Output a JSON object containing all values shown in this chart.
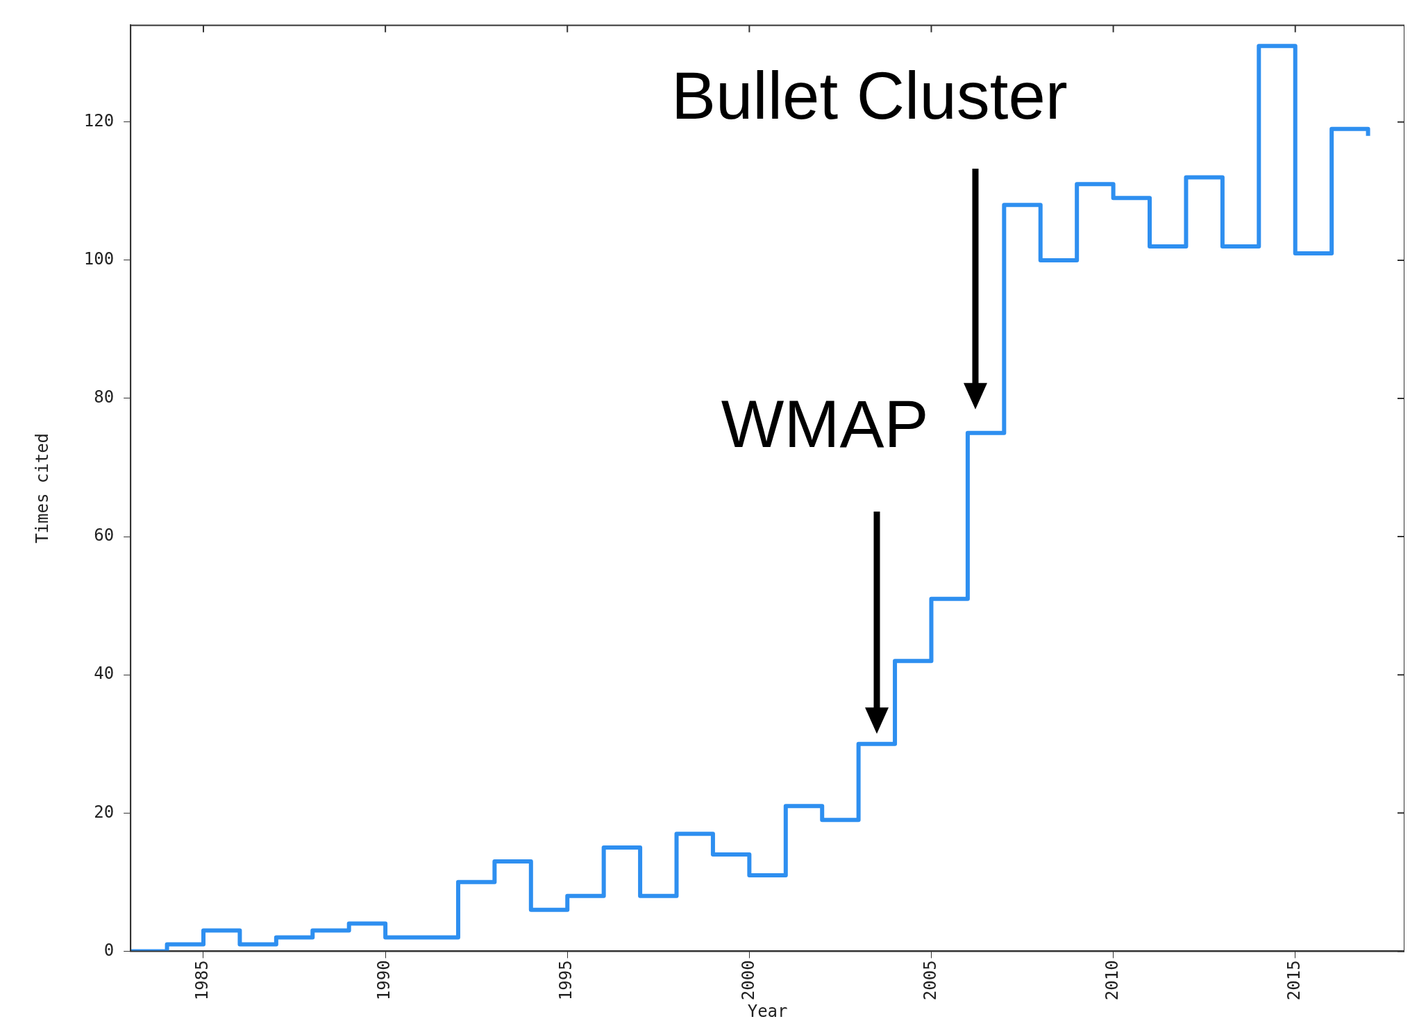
{
  "chart_data": {
    "type": "step",
    "xlabel": "Year",
    "ylabel": "Times cited",
    "x": [
      1983,
      1984,
      1985,
      1986,
      1987,
      1988,
      1989,
      1990,
      1991,
      1992,
      1993,
      1994,
      1995,
      1996,
      1997,
      1998,
      1999,
      2000,
      2001,
      2002,
      2003,
      2004,
      2005,
      2006,
      2007,
      2008,
      2009,
      2010,
      2011,
      2012,
      2013,
      2014,
      2015,
      2016,
      2017
    ],
    "series": [
      {
        "color": "#2e8ff0",
        "values": [
          0,
          1,
          3,
          1,
          2,
          3,
          4,
          2,
          2,
          10,
          13,
          6,
          8,
          15,
          8,
          17,
          14,
          11,
          21,
          19,
          30,
          42,
          51,
          75,
          108,
          100,
          111,
          109,
          102,
          112,
          102,
          131,
          101,
          119,
          118
        ]
      }
    ],
    "xlim": [
      1983,
      2018
    ],
    "xticks": [
      1985,
      1990,
      1995,
      2000,
      2005,
      2010,
      2015
    ],
    "ylim": [
      0,
      134
    ],
    "yticks": [
      0,
      20,
      40,
      60,
      80,
      100,
      120
    ],
    "grid": false,
    "legend": false,
    "marker": "none",
    "line_style": "solid",
    "annotations": [
      "WMAP",
      "Bullet Cluster"
    ]
  }
}
